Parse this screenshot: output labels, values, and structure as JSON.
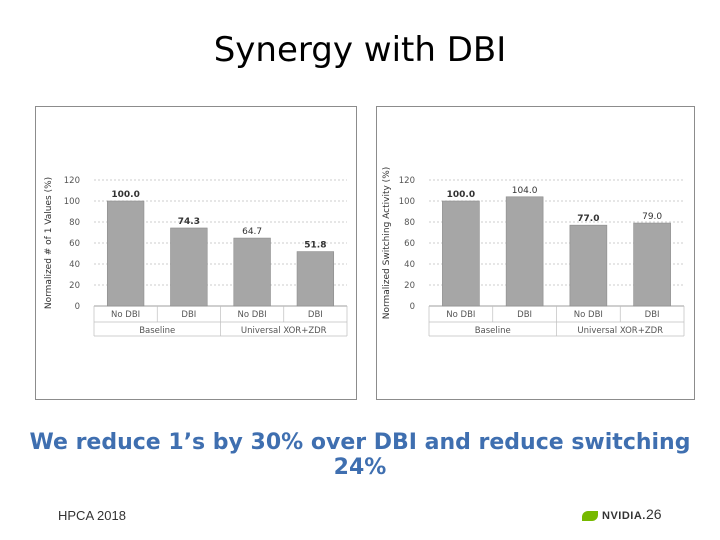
{
  "slide": {
    "title": "Synergy with DBI",
    "subtitle": "We reduce 1’s by 30% over DBI and reduce switching 24%",
    "footer_left": "HPCA 2018",
    "logo_text": "NVIDIA.",
    "page_number": "26"
  },
  "colors": {
    "bar": "#a6a6a6",
    "bar_stroke": "#8a8a8a",
    "subtitle": "#3f6fb0",
    "logo_green": "#76b900"
  },
  "chart_data": [
    {
      "type": "bar",
      "categories": [
        "No DBI",
        "DBI",
        "No DBI",
        "DBI"
      ],
      "groups": [
        "Baseline",
        "Universal XOR+ZDR"
      ],
      "values": [
        100.0,
        74.3,
        64.7,
        51.8
      ],
      "value_labels": [
        "100.0",
        "74.3",
        "64.7",
        "51.8"
      ],
      "bold_labels": [
        true,
        true,
        false,
        true
      ],
      "ylabel": "Normalized # of 1 Values (%)",
      "yticks": [
        "0",
        "20",
        "40",
        "60",
        "80",
        "100",
        "120"
      ],
      "ylim": [
        0,
        120
      ],
      "grid": true
    },
    {
      "type": "bar",
      "categories": [
        "No DBI",
        "DBI",
        "No DBI",
        "DBI"
      ],
      "groups": [
        "Baseline",
        "Universal XOR+ZDR"
      ],
      "values": [
        100.0,
        104.0,
        77.0,
        79.0
      ],
      "value_labels": [
        "100.0",
        "104.0",
        "77.0",
        "79.0"
      ],
      "bold_labels": [
        true,
        false,
        true,
        false
      ],
      "ylabel": "Normalized Switching Activity (%)",
      "yticks": [
        "0",
        "20",
        "40",
        "60",
        "80",
        "100",
        "120"
      ],
      "ylim": [
        0,
        120
      ],
      "grid": true
    }
  ]
}
